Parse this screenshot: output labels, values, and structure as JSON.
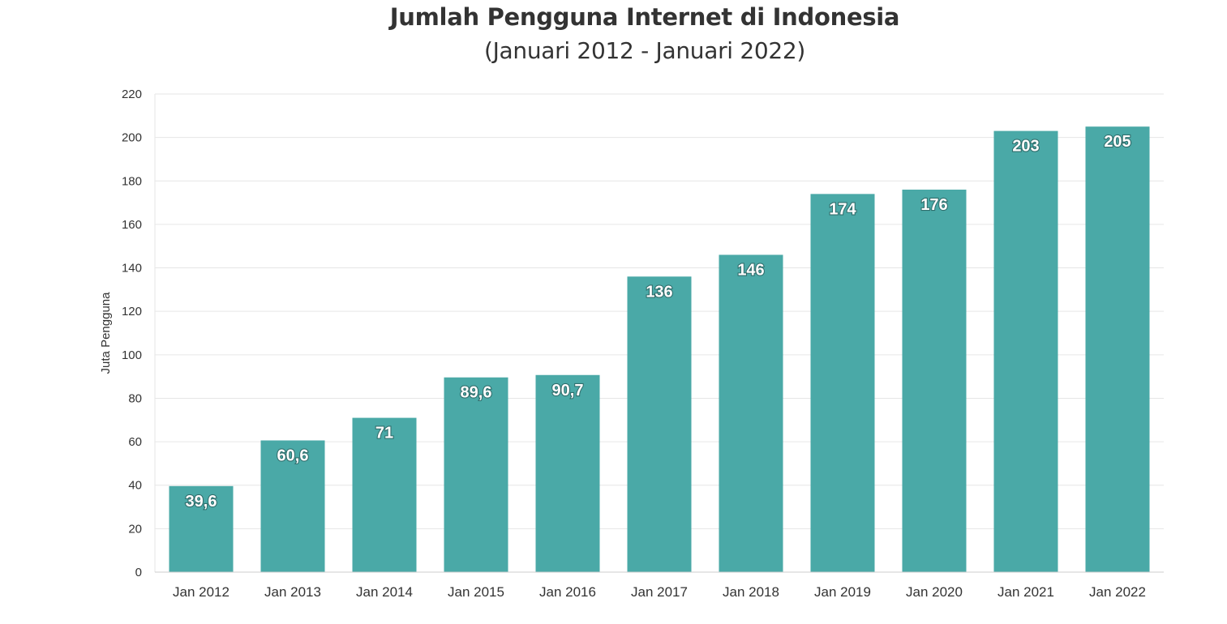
{
  "title": "Jumlah Pengguna Internet di Indonesia",
  "subtitle": "(Januari 2012 - Januari 2022)",
  "colors": {
    "bar": "#4aa9a7",
    "grid": "#e6e6e6",
    "axis_text": "#333333",
    "label_text": "#ffffff"
  },
  "chart_data": {
    "type": "bar",
    "title": "Jumlah Pengguna Internet di Indonesia",
    "subtitle": "(Januari 2012 - Januari 2022)",
    "xlabel": "",
    "ylabel": "Juta Pengguna",
    "ylim": [
      0,
      220
    ],
    "yticks": [
      0,
      20,
      40,
      60,
      80,
      100,
      120,
      140,
      160,
      180,
      200,
      220
    ],
    "grid": true,
    "legend": "none",
    "categories": [
      "Jan 2012",
      "Jan 2013",
      "Jan 2014",
      "Jan 2015",
      "Jan 2016",
      "Jan 2017",
      "Jan 2018",
      "Jan 2019",
      "Jan 2020",
      "Jan 2021",
      "Jan 2022"
    ],
    "values": [
      39.6,
      60.6,
      71,
      89.6,
      90.7,
      136,
      146,
      174,
      176,
      203,
      205
    ],
    "data_labels": [
      "39,6",
      "60,6",
      "71",
      "89,6",
      "90,7",
      "136",
      "146",
      "174",
      "176",
      "203",
      "205"
    ]
  }
}
